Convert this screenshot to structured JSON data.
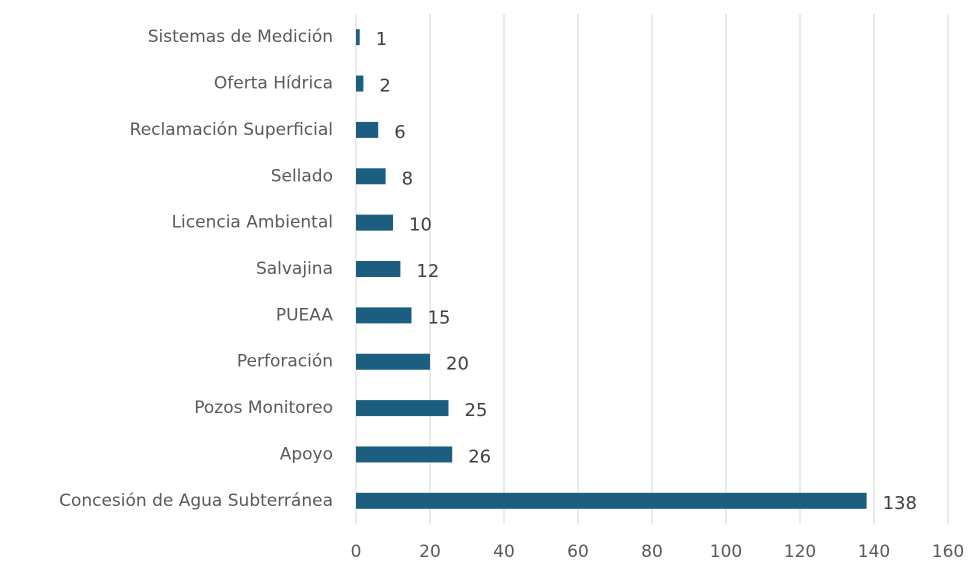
{
  "chart_data": {
    "type": "bar",
    "orientation": "horizontal",
    "categories": [
      "Sistemas de Medición",
      "Oferta Hídrica",
      "Reclamación Superficial",
      "Sellado",
      "Licencia Ambiental",
      "Salvajina",
      "PUEAA",
      "Perforación",
      "Pozos Monitoreo",
      "Apoyo",
      "Concesión de Agua Subterránea"
    ],
    "values": [
      1,
      2,
      6,
      8,
      10,
      12,
      15,
      20,
      25,
      26,
      138
    ],
    "color": "#1b5e80",
    "xlim": [
      0,
      160
    ],
    "xticks": [
      0,
      20,
      40,
      60,
      80,
      100,
      120,
      140,
      160
    ],
    "grid": true
  }
}
